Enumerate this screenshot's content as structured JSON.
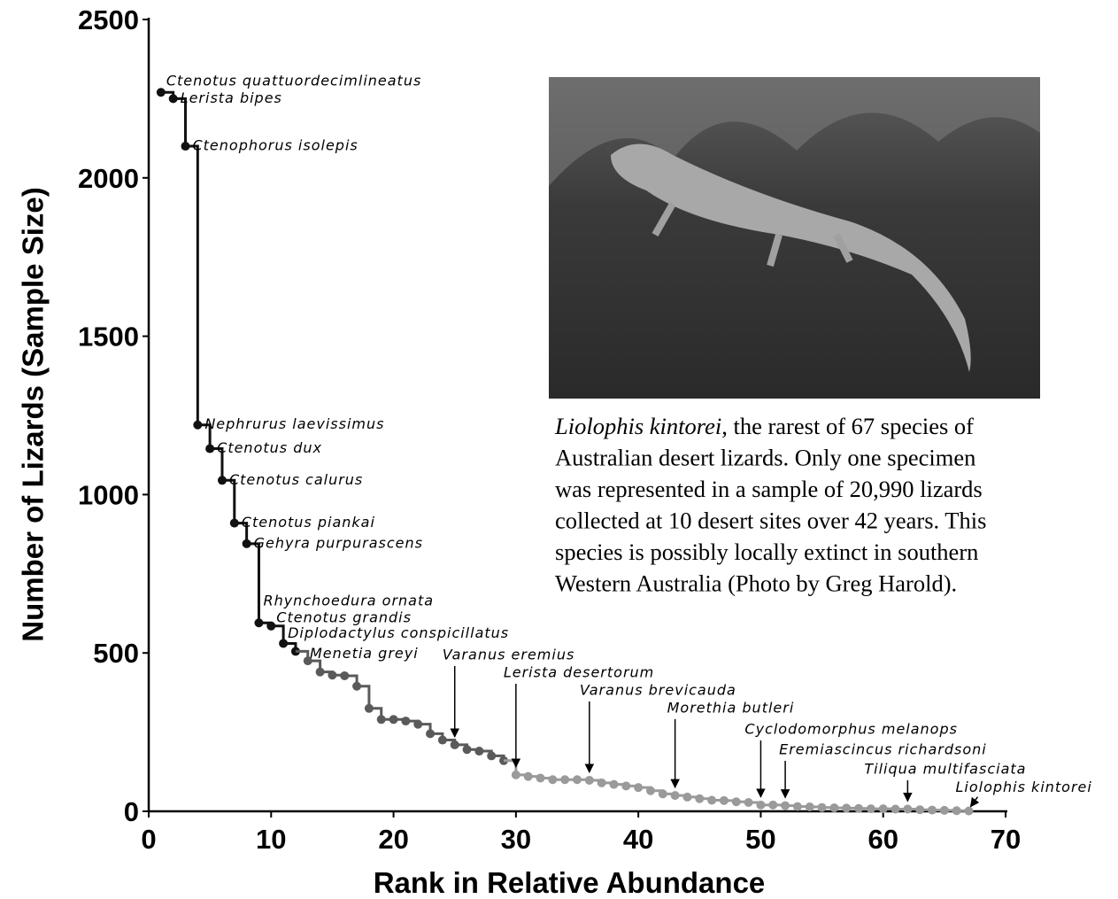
{
  "chart_data": {
    "type": "line",
    "xlabel": "Rank in Relative Abundance",
    "ylabel": "Number of Lizards (Sample Size)",
    "xlim": [
      0,
      70
    ],
    "xticks": [
      0,
      10,
      20,
      30,
      40,
      50,
      60,
      70
    ],
    "ylim": [
      0,
      2500
    ],
    "yticks": [
      0,
      500,
      1000,
      1500,
      2000,
      2500
    ],
    "series": [
      {
        "color": "#111111",
        "x": [
          1,
          2,
          3,
          4,
          5,
          6,
          7,
          8,
          9,
          10,
          11,
          12
        ],
        "values": [
          2270,
          2250,
          2100,
          1220,
          1145,
          1045,
          910,
          845,
          595,
          585,
          530,
          505
        ],
        "point_labels": [
          "Ctenotus quattuordecimlineatus",
          "Lerista bipes",
          "Ctenophorus isolepis",
          "Nephrurus laevissimus",
          "Ctenotus dux",
          "Ctenotus calurus",
          "Ctenotus piankai",
          "Gehyra purpurascens",
          "Rhynchoedura ornata",
          "Ctenotus grandis",
          "Diplodactylus conspicillatus",
          "Menetia greyi"
        ]
      },
      {
        "color": "#5a5a5a",
        "x": [
          13,
          14,
          15,
          16,
          17,
          18,
          19,
          20,
          21,
          22,
          23,
          24,
          25,
          26,
          27,
          28,
          29
        ],
        "values": [
          475,
          440,
          430,
          428,
          395,
          325,
          290,
          290,
          285,
          275,
          245,
          225,
          210,
          195,
          190,
          175,
          160
        ],
        "point_labels": [
          null,
          null,
          null,
          null,
          null,
          null,
          null,
          null,
          null,
          null,
          null,
          null,
          "Varanus eremius",
          null,
          null,
          null,
          null
        ]
      },
      {
        "color": "#9a9a9a",
        "x": [
          30,
          31,
          32,
          33,
          34,
          35,
          36,
          37,
          38,
          39,
          40,
          41,
          42,
          43,
          44,
          45,
          46,
          47,
          48,
          49,
          50,
          51,
          52,
          53,
          54,
          55,
          56,
          57,
          58,
          59,
          60,
          61,
          62,
          63,
          64,
          65,
          66,
          67
        ],
        "values": [
          115,
          110,
          105,
          100,
          100,
          100,
          98,
          90,
          85,
          80,
          75,
          65,
          55,
          50,
          45,
          40,
          35,
          34,
          30,
          28,
          20,
          20,
          18,
          15,
          14,
          12,
          11,
          10,
          9,
          8,
          8,
          7,
          7,
          5,
          4,
          3,
          2,
          1
        ],
        "point_labels": [
          "Lerista desertorum",
          null,
          null,
          null,
          null,
          null,
          "Varanus brevicauda",
          null,
          null,
          null,
          null,
          null,
          null,
          "Morethia butleri",
          null,
          null,
          null,
          null,
          null,
          null,
          "Cyclodomorphus melanops",
          null,
          "Eremiascincus richardsoni",
          null,
          null,
          null,
          null,
          null,
          null,
          null,
          null,
          null,
          "Tiliqua multifasciata",
          null,
          null,
          null,
          null,
          "Liolophis kintorei"
        ]
      }
    ],
    "caption_species": "Liolophis kintorei",
    "caption_lines": [
      ", the rarest of 67 species of",
      "Australian desert lizards. Only one specimen",
      "was represented in a sample of 20,990 lizards",
      "collected at 10 desert sites over  42 years. This",
      "species is possibly locally extinct in southern",
      "Western Australia (Photo by Greg Harold)."
    ]
  }
}
